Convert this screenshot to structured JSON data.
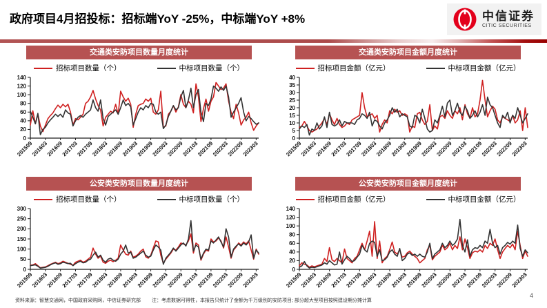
{
  "header": {
    "title": "政府项目4月招投标：招标端YoY -25%，中标端YoY +8%",
    "logo": {
      "cn": "中信证券",
      "en": "CITIC SECURITIES"
    }
  },
  "footer": {
    "source": "资料来源：智慧交通网，中国政府采购网，中信证券研究部",
    "note": "注：考虑数据可得性，本报告只统计了金额为千万级别的安防项目; 部分超大型项目按照建设期分摊计算",
    "page": "4"
  },
  "colors": {
    "brand_red": "#e3001b",
    "title_bar": "#b65252",
    "line_red": "#cf2020",
    "line_dark": "#333333",
    "axis": "#1a1a1a"
  },
  "chart_data": [
    {
      "type": "line",
      "title": "交通类安防项目数量月度统计",
      "ylim": [
        0,
        140
      ],
      "ystep": 20,
      "x_labels": [
        "201509",
        "201603",
        "201609",
        "201703",
        "201709",
        "201803",
        "201809",
        "201903",
        "201909",
        "202003",
        "202009",
        "202103",
        "202109",
        "202203",
        "202209",
        "202303"
      ],
      "label_every": 6,
      "series": [
        {
          "name": "招标项目数量（个）",
          "color": "#cf2020",
          "values": [
            30,
            63,
            33,
            55,
            28,
            15,
            30,
            45,
            52,
            58,
            68,
            76,
            70,
            78,
            72,
            78,
            60,
            30,
            45,
            42,
            48,
            55,
            80,
            85,
            95,
            110,
            90,
            75,
            65,
            28,
            48,
            55,
            62,
            58,
            78,
            55,
            108,
            95,
            85,
            92,
            78,
            25,
            55,
            75,
            78,
            80,
            90,
            85,
            92,
            60,
            55,
            65,
            108,
            25,
            28,
            55,
            62,
            75,
            60,
            72,
            100,
            78,
            70,
            85,
            78,
            58,
            125,
            95,
            38,
            68,
            90,
            62,
            85,
            95,
            128,
            120,
            112,
            115,
            125,
            85,
            60,
            45,
            78,
            58,
            30,
            42,
            48,
            60,
            35,
            18,
            28,
            35
          ]
        },
        {
          "name": "中标项目数量（个）",
          "color": "#333333",
          "values": [
            62,
            48,
            33,
            57,
            8,
            20,
            25,
            35,
            42,
            48,
            55,
            50,
            55,
            48,
            65,
            58,
            55,
            28,
            40,
            48,
            52,
            48,
            55,
            60,
            65,
            88,
            70,
            62,
            88,
            45,
            30,
            50,
            55,
            60,
            65,
            55,
            70,
            88,
            75,
            80,
            72,
            30,
            45,
            60,
            70,
            65,
            75,
            70,
            80,
            78,
            60,
            55,
            60,
            22,
            30,
            50,
            62,
            75,
            65,
            70,
            95,
            110,
            70,
            88,
            115,
            70,
            100,
            112,
            60,
            38,
            80,
            75,
            90,
            120,
            115,
            108,
            118,
            110,
            120,
            95,
            48,
            60,
            70,
            80,
            93,
            60,
            40,
            50,
            45,
            38,
            32,
            35
          ]
        }
      ]
    },
    {
      "type": "line",
      "title": "交通类安防项目金额月度统计",
      "ylim": [
        0,
        40
      ],
      "ystep": 5,
      "x_labels": [
        "201509",
        "201603",
        "201609",
        "201703",
        "201709",
        "201803",
        "201809",
        "201903",
        "201909",
        "202003",
        "202009",
        "202103",
        "202109",
        "202203",
        "202209",
        "202303"
      ],
      "label_every": 6,
      "series": [
        {
          "name": "招标项目金额（亿元）",
          "color": "#cf2020",
          "values": [
            7,
            8,
            11,
            8,
            5,
            4,
            5,
            6,
            8,
            10,
            13,
            9,
            16,
            12,
            9,
            13,
            9,
            7,
            8,
            10,
            9,
            12,
            13,
            14,
            15,
            30,
            20,
            14,
            15,
            16,
            13,
            15,
            4,
            9,
            12,
            10,
            18,
            16,
            19,
            17,
            18,
            15,
            16,
            15,
            4,
            8,
            7,
            16,
            17,
            12,
            9,
            11,
            22,
            5,
            8,
            6,
            14,
            15,
            13,
            18,
            15,
            13,
            18,
            16,
            20,
            12,
            22,
            16,
            13,
            20,
            14,
            16,
            25,
            38,
            25,
            14,
            18,
            21,
            19,
            12,
            10,
            14,
            13,
            12,
            11,
            15,
            10,
            12,
            18,
            5,
            20,
            7
          ]
        },
        {
          "name": "中标项目金额（亿元）",
          "color": "#333333",
          "values": [
            6,
            8,
            7,
            9,
            2,
            6,
            5,
            10,
            6,
            8,
            14,
            7,
            17,
            9,
            8,
            9,
            12,
            8,
            11,
            10,
            10,
            10,
            9,
            12,
            13,
            16,
            15,
            13,
            17,
            8,
            12,
            11,
            8,
            6,
            10,
            12,
            15,
            20,
            17,
            19,
            14,
            16,
            15,
            14,
            8,
            7,
            15,
            14,
            10,
            19,
            13,
            6,
            4,
            5,
            12,
            10,
            15,
            21,
            14,
            23,
            25,
            15,
            18,
            23,
            17,
            15,
            21,
            18,
            13,
            15,
            18,
            14,
            17,
            22,
            15,
            27,
            22,
            20,
            15,
            10,
            7,
            15,
            13,
            17,
            10,
            15,
            13,
            20,
            15,
            10,
            13,
            16
          ]
        }
      ]
    },
    {
      "type": "line",
      "title": "公安类安防项目数量月度统计",
      "ylim": [
        0,
        300
      ],
      "ystep": 50,
      "x_labels": [
        "201509",
        "201603",
        "201609",
        "201703",
        "201709",
        "201803",
        "201809",
        "201903",
        "201909",
        "202003",
        "202009",
        "202103",
        "202109",
        "202203",
        "202209",
        "202303"
      ],
      "label_every": 6,
      "series": [
        {
          "name": "招标项目数量（个）",
          "color": "#cf2020",
          "values": [
            20,
            22,
            28,
            18,
            8,
            10,
            12,
            18,
            25,
            30,
            35,
            28,
            32,
            40,
            35,
            30,
            25,
            20,
            35,
            40,
            45,
            35,
            40,
            50,
            60,
            105,
            75,
            55,
            65,
            35,
            30,
            40,
            45,
            38,
            45,
            55,
            120,
            95,
            75,
            70,
            90,
            60,
            65,
            75,
            90,
            100,
            62,
            55,
            70,
            105,
            140,
            135,
            70,
            30,
            50,
            65,
            80,
            100,
            95,
            110,
            130,
            125,
            120,
            140,
            175,
            80,
            130,
            120,
            45,
            75,
            95,
            90,
            150,
            135,
            140,
            155,
            140,
            105,
            160,
            110,
            55,
            95,
            110,
            130,
            120,
            135,
            125,
            140,
            95,
            50,
            100,
            75
          ]
        },
        {
          "name": "中标项目数量（个）",
          "color": "#333333",
          "values": [
            18,
            20,
            22,
            15,
            6,
            8,
            10,
            15,
            22,
            28,
            32,
            25,
            28,
            35,
            32,
            28,
            30,
            18,
            28,
            35,
            40,
            32,
            35,
            45,
            50,
            70,
            85,
            60,
            70,
            45,
            35,
            50,
            55,
            45,
            40,
            50,
            75,
            90,
            120,
            80,
            85,
            55,
            60,
            70,
            80,
            90,
            70,
            60,
            65,
            95,
            120,
            110,
            95,
            25,
            55,
            70,
            85,
            105,
            90,
            105,
            120,
            130,
            115,
            150,
            240,
            90,
            120,
            110,
            50,
            80,
            100,
            95,
            140,
            130,
            145,
            160,
            135,
            110,
            200,
            160,
            60,
            100,
            115,
            125,
            115,
            130,
            120,
            135,
            170,
            55,
            95,
            80
          ]
        }
      ]
    },
    {
      "type": "line",
      "title": "公安类安防项目金额月度统计",
      "ylim": [
        0,
        140
      ],
      "ystep": 20,
      "x_labels": [
        "201509",
        "201603",
        "201609",
        "201703",
        "201709",
        "201803",
        "201809",
        "201903",
        "201909",
        "202003",
        "202009",
        "202103",
        "202109",
        "202203",
        "202209",
        "202303"
      ],
      "label_every": 6,
      "series": [
        {
          "name": "招标项目金额（亿元）",
          "color": "#cf2020",
          "values": [
            8,
            15,
            12,
            10,
            5,
            8,
            6,
            8,
            10,
            12,
            25,
            18,
            50,
            22,
            18,
            25,
            20,
            15,
            47,
            25,
            20,
            15,
            25,
            30,
            45,
            60,
            45,
            65,
            88,
            30,
            110,
            25,
            65,
            15,
            25,
            30,
            45,
            63,
            40,
            35,
            45,
            28,
            30,
            38,
            42,
            35,
            30,
            25,
            15,
            20,
            25,
            45,
            55,
            22,
            30,
            35,
            40,
            55,
            45,
            50,
            60,
            45,
            55,
            48,
            75,
            45,
            70,
            50,
            25,
            38,
            42,
            40,
            45,
            40,
            55,
            48,
            60,
            55,
            70,
            45,
            25,
            40,
            48,
            55,
            50,
            58,
            45,
            88,
            55,
            25,
            42,
            30
          ]
        },
        {
          "name": "中标项目金额（亿元）",
          "color": "#333333",
          "values": [
            5,
            8,
            18,
            8,
            3,
            5,
            4,
            6,
            8,
            10,
            15,
            12,
            20,
            15,
            10,
            12,
            40,
            12,
            22,
            30,
            25,
            18,
            20,
            28,
            35,
            55,
            45,
            40,
            60,
            65,
            62,
            30,
            45,
            20,
            22,
            28,
            40,
            45,
            35,
            30,
            48,
            20,
            25,
            35,
            38,
            32,
            35,
            30,
            35,
            30,
            28,
            40,
            60,
            25,
            35,
            40,
            45,
            60,
            50,
            55,
            65,
            55,
            60,
            70,
            115,
            55,
            40,
            68,
            30,
            45,
            50,
            48,
            55,
            50,
            65,
            60,
            92,
            60,
            50,
            55,
            35,
            50,
            55,
            62,
            58,
            65,
            60,
            102,
            48,
            30,
            45,
            38
          ]
        }
      ]
    }
  ]
}
